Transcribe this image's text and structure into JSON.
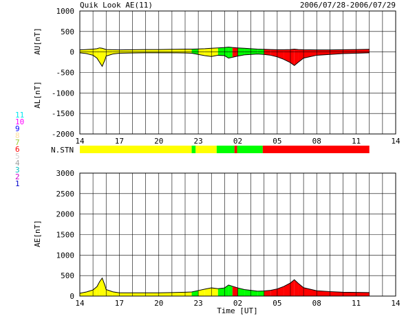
{
  "header": {
    "title": "Quik Look AE(11)",
    "date_range": "2006/07/28-2006/07/29"
  },
  "legend": {
    "entries": [
      {
        "label": "11",
        "color": "#00e5ee"
      },
      {
        "label": "10",
        "color": "#ff00ff"
      },
      {
        "label": "9",
        "color": "#0000ff"
      },
      {
        "label": "8",
        "color": "#ffe0a0"
      },
      {
        "label": "7",
        "color": "#9acd32"
      },
      {
        "label": "6",
        "color": "#ff0000"
      },
      {
        "label": "5",
        "color": "#d0d0d0"
      },
      {
        "label": "4",
        "color": "#a0a0a0"
      },
      {
        "label": "3",
        "color": "#00bfbf"
      },
      {
        "label": "2",
        "color": "#cc00cc"
      },
      {
        "label": "1",
        "color": "#0000cc"
      }
    ]
  },
  "colors": {
    "yellow": "#ffff00",
    "green": "#00ff00",
    "red": "#ff0000",
    "trace": "#000000"
  },
  "chart_data": [
    {
      "type": "area",
      "ylabel_top": "AU[nT]",
      "ylabel_bottom": "AL[nT]",
      "ylim": [
        -2000,
        1000
      ],
      "yticks": [
        1000,
        500,
        0,
        -500,
        -1000,
        -1500,
        -2000
      ],
      "xlim": [
        14,
        38
      ],
      "xtick_labels": [
        "14",
        "17",
        "20",
        "23",
        "02",
        "05",
        "08",
        "11",
        "14"
      ],
      "grid": true,
      "x": [
        14,
        14.5,
        15,
        15.3,
        15.5,
        15.7,
        15.9,
        16,
        16.5,
        17,
        18,
        19,
        20,
        21,
        22,
        22.5,
        23,
        23.5,
        24,
        24.5,
        25,
        25.3,
        25.6,
        26,
        26.5,
        27,
        27.5,
        28,
        28.5,
        29,
        29.5,
        30,
        30.3,
        30.6,
        31,
        32,
        33,
        34,
        35,
        36
      ],
      "au": [
        50,
        60,
        70,
        80,
        100,
        90,
        70,
        60,
        55,
        50,
        55,
        60,
        60,
        65,
        70,
        70,
        75,
        80,
        90,
        100,
        110,
        120,
        110,
        100,
        90,
        80,
        70,
        65,
        60,
        55,
        55,
        60,
        70,
        60,
        55,
        50,
        50,
        55,
        60,
        65
      ],
      "al": [
        -20,
        -40,
        -80,
        -150,
        -250,
        -350,
        -200,
        -100,
        -50,
        -30,
        -25,
        -20,
        -20,
        -20,
        -25,
        -30,
        -60,
        -90,
        -110,
        -80,
        -90,
        -150,
        -130,
        -100,
        -70,
        -60,
        -50,
        -60,
        -80,
        -120,
        -180,
        -260,
        -330,
        -250,
        -150,
        -80,
        -60,
        -40,
        -30,
        -20
      ]
    },
    {
      "type": "bar",
      "label": "N.STN",
      "segments": [
        {
          "start": 14,
          "end": 22.5,
          "color": "#ffff00"
        },
        {
          "start": 22.5,
          "end": 22.8,
          "color": "#00ff00"
        },
        {
          "start": 22.8,
          "end": 24.4,
          "color": "#ffff00"
        },
        {
          "start": 24.4,
          "end": 25.75,
          "color": "#00ff00"
        },
        {
          "start": 25.75,
          "end": 25.95,
          "color": "#ff0000"
        },
        {
          "start": 25.95,
          "end": 27.9,
          "color": "#00ff00"
        },
        {
          "start": 27.9,
          "end": 36,
          "color": "#ff0000"
        }
      ]
    },
    {
      "type": "area",
      "ylabel": "AE[nT]",
      "xlabel": "Time [UT]",
      "ylim": [
        0,
        3000
      ],
      "yticks": [
        3000,
        2500,
        2000,
        1500,
        1000,
        500,
        0
      ],
      "xlim": [
        14,
        38
      ],
      "xtick_labels": [
        "14",
        "17",
        "20",
        "23",
        "02",
        "05",
        "08",
        "11",
        "14"
      ],
      "grid": true,
      "x": [
        14,
        14.5,
        15,
        15.3,
        15.5,
        15.7,
        15.9,
        16,
        16.5,
        17,
        18,
        19,
        20,
        21,
        22,
        22.5,
        23,
        23.5,
        24,
        24.5,
        25,
        25.3,
        25.6,
        26,
        26.5,
        27,
        27.5,
        28,
        28.5,
        29,
        29.5,
        30,
        30.3,
        30.6,
        31,
        32,
        33,
        34,
        35,
        36
      ],
      "ae": [
        70,
        100,
        150,
        230,
        350,
        440,
        270,
        160,
        105,
        80,
        80,
        80,
        80,
        85,
        95,
        100,
        135,
        170,
        200,
        180,
        200,
        270,
        240,
        200,
        160,
        140,
        120,
        125,
        140,
        175,
        235,
        320,
        400,
        310,
        205,
        130,
        110,
        95,
        90,
        85
      ]
    }
  ],
  "segment_colors": [
    {
      "upto": 22.5,
      "color": "#ffff00"
    },
    {
      "upto": 22.8,
      "color": "#00ff00"
    },
    {
      "upto": 24.4,
      "color": "#ffff00"
    },
    {
      "upto": 25.75,
      "color": "#00ff00"
    },
    {
      "upto": 25.95,
      "color": "#ff0000"
    },
    {
      "upto": 27.9,
      "color": "#00ff00"
    },
    {
      "upto": 36,
      "color": "#ff0000"
    }
  ]
}
